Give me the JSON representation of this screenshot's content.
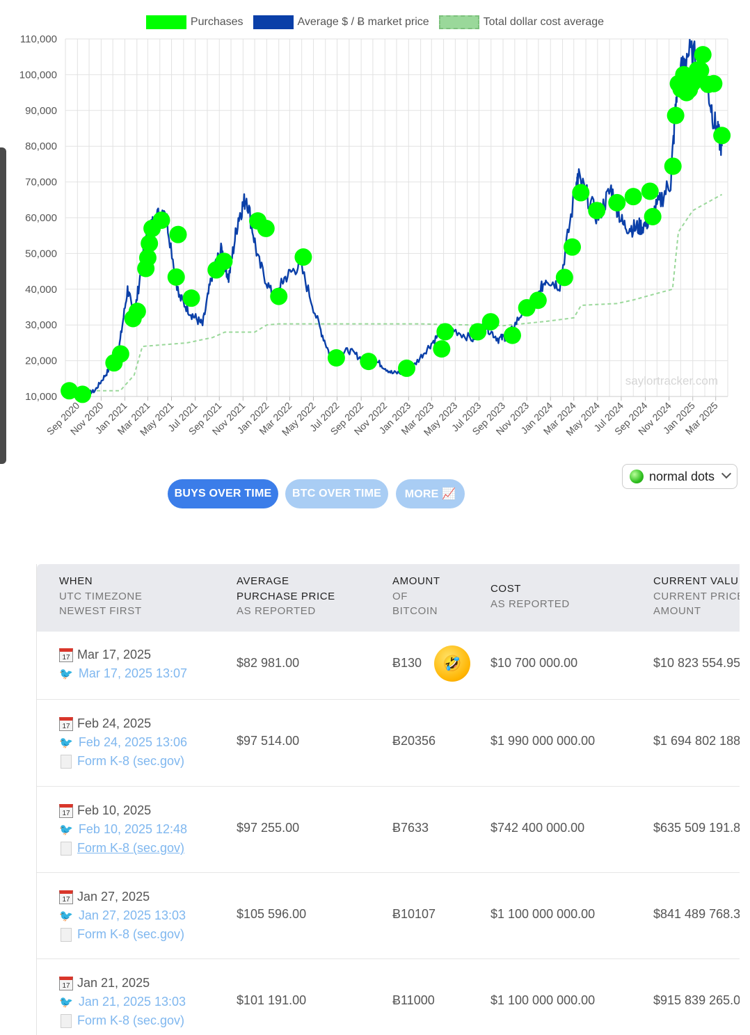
{
  "legend": {
    "purchases": "Purchases",
    "avg_price": "Average $ / Ƀ market price",
    "dca": "Total dollar cost average"
  },
  "watermark": "saylortracker.com",
  "colors": {
    "purchases": "#00ff00",
    "price": "#0a3fa8",
    "dca": "#9ad89a",
    "button_active": "#3b7de9",
    "button_inactive": "#a9cdf4"
  },
  "chart_data": {
    "type": "line",
    "ylim": [
      10000,
      110000
    ],
    "y_ticks": [
      "10,000",
      "20,000",
      "30,000",
      "40,000",
      "50,000",
      "60,000",
      "70,000",
      "80,000",
      "90,000",
      "100,000",
      "110,000"
    ],
    "x_ticks": [
      "Sep 2020",
      "Nov 2020",
      "Jan 2021",
      "Mar 2021",
      "May 2021",
      "Jul 2021",
      "Sep 2021",
      "Nov 2021",
      "Jan 2022",
      "Mar 2022",
      "May 2022",
      "Jul 2022",
      "Sep 2022",
      "Nov 2022",
      "Jan 2023",
      "Mar 2023",
      "May 2023",
      "Jul 2023",
      "Sep 2023",
      "Nov 2023",
      "Jan 2024",
      "Mar 2024",
      "May 2024",
      "Jul 2024",
      "Sep 2024",
      "Nov 2024",
      "Jan 2025",
      "Mar 2025"
    ],
    "series": [
      {
        "name": "Average $ / Ƀ market price",
        "x": [
          "2020-08-01",
          "2020-09-15",
          "2020-10-15",
          "2020-11-15",
          "2020-12-15",
          "2021-01-08",
          "2021-01-25",
          "2021-02-20",
          "2021-03-15",
          "2021-04-14",
          "2021-05-20",
          "2021-06-22",
          "2021-07-20",
          "2021-08-15",
          "2021-09-07",
          "2021-09-25",
          "2021-10-20",
          "2021-11-10",
          "2021-12-10",
          "2022-01-20",
          "2022-02-15",
          "2022-03-28",
          "2022-05-15",
          "2022-06-18",
          "2022-07-30",
          "2022-09-10",
          "2022-10-15",
          "2022-11-20",
          "2023-01-01",
          "2023-02-15",
          "2023-03-25",
          "2023-04-20",
          "2023-06-15",
          "2023-07-15",
          "2023-08-20",
          "2023-09-15",
          "2023-10-25",
          "2023-11-25",
          "2023-12-20",
          "2024-01-25",
          "2024-03-05",
          "2024-03-14",
          "2024-05-01",
          "2024-06-05",
          "2024-07-05",
          "2024-08-05",
          "2024-09-01",
          "2024-10-01",
          "2024-11-05",
          "2024-11-22",
          "2024-12-17",
          "2025-01-20",
          "2025-02-05",
          "2025-03-01",
          "2025-03-17"
        ],
        "values": [
          11600,
          10700,
          11500,
          16500,
          22000,
          40000,
          32000,
          52000,
          59000,
          63000,
          38000,
          33000,
          30000,
          45000,
          51000,
          43000,
          60000,
          66000,
          48000,
          37000,
          43000,
          47000,
          30000,
          20000,
          23000,
          20000,
          19500,
          16500,
          16800,
          23000,
          28000,
          29000,
          26000,
          30000,
          26000,
          27000,
          34500,
          37000,
          43000,
          41000,
          68000,
          71000,
          60000,
          68000,
          58000,
          57000,
          58000,
          63000,
          70000,
          97000,
          106000,
          104000,
          98000,
          85000,
          80000
        ]
      },
      {
        "name": "Total dollar cost average",
        "x": [
          "2020-08-01",
          "2020-11-20",
          "2020-12-20",
          "2021-01-25",
          "2021-02-15",
          "2021-06-10",
          "2021-08-15",
          "2021-09-15",
          "2021-12-01",
          "2022-01-01",
          "2022-02-01",
          "2023-02-01",
          "2023-09-01",
          "2023-12-20",
          "2024-03-01",
          "2024-03-20",
          "2024-06-20",
          "2024-08-01",
          "2024-09-20",
          "2024-11-10",
          "2024-11-25",
          "2025-01-01",
          "2025-03-17"
        ],
        "values": [
          11600,
          11600,
          11600,
          16000,
          24000,
          25000,
          26500,
          28000,
          28000,
          30000,
          30300,
          30300,
          29800,
          31000,
          32000,
          35500,
          36000,
          37000,
          38500,
          40000,
          56000,
          62000,
          66500
        ]
      }
    ],
    "purchase_markers": {
      "name": "Purchases",
      "x": [
        "2020-08-11",
        "2020-09-14",
        "2020-12-04",
        "2020-12-21",
        "2021-01-22",
        "2021-02-02",
        "2021-02-24",
        "2021-03-01",
        "2021-03-05",
        "2021-03-12",
        "2021-04-05",
        "2021-05-13",
        "2021-05-18",
        "2021-06-21",
        "2021-08-24",
        "2021-09-13",
        "2021-12-09",
        "2021-12-30",
        "2022-02-01",
        "2022-04-05",
        "2022-06-29",
        "2022-09-20",
        "2022-12-27",
        "2023-03-27",
        "2023-04-05",
        "2023-06-28",
        "2023-07-31",
        "2023-09-25",
        "2023-11-01",
        "2023-11-30",
        "2024-02-06",
        "2024-02-26",
        "2024-03-19",
        "2024-04-29",
        "2024-06-20",
        "2024-08-01",
        "2024-09-13",
        "2024-09-20",
        "2024-11-11",
        "2024-11-18",
        "2024-11-25",
        "2024-12-02",
        "2024-12-09",
        "2024-12-16",
        "2024-12-23",
        "2024-12-30",
        "2025-01-06",
        "2025-01-13",
        "2025-01-21",
        "2025-01-27",
        "2025-02-10",
        "2025-02-24",
        "2025-03-17"
      ],
      "values": [
        11600,
        10600,
        19400,
        21900,
        31800,
        33800,
        45800,
        48800,
        52800,
        57000,
        59300,
        43400,
        55300,
        37500,
        45400,
        47800,
        59100,
        57000,
        38000,
        49000,
        20800,
        19800,
        17900,
        23300,
        28100,
        28100,
        30900,
        27100,
        34800,
        36900,
        43300,
        51800,
        67000,
        62000,
        64200,
        65900,
        67400,
        60300,
        74400,
        88600,
        97500,
        96000,
        100000,
        95000,
        95800,
        97500,
        98300,
        101300,
        101200,
        105600,
        97300,
        97500,
        83000
      ]
    }
  },
  "dots_select": {
    "value": "normal dots"
  },
  "buttons": {
    "buys": "BUYS OVER TIME",
    "btc": "BTC OVER TIME",
    "more": "MORE 📈"
  },
  "table": {
    "headers": {
      "when": [
        "WHEN",
        "UTC TIMEZONE",
        "NEWEST FIRST"
      ],
      "avg": [
        "AVERAGE",
        "PURCHASE PRICE",
        "AS REPORTED"
      ],
      "amount": [
        "AMOUNT",
        "OF",
        "BITCOIN"
      ],
      "cost": [
        "COST",
        "AS REPORTED"
      ],
      "value": [
        "CURRENT VALU",
        "CURRENT PRICE",
        "AMOUNT"
      ]
    },
    "rows": [
      {
        "date": "Mar 17, 2025",
        "tweet": "Mar 17, 2025 13:07",
        "form": "",
        "avg": "$82 981.00",
        "amount": "Ƀ130",
        "cost": "$10 700 000.00",
        "value": "$10 823 554.95"
      },
      {
        "date": "Feb 24, 2025",
        "tweet": "Feb 24, 2025 13:06",
        "form": "Form K-8 (sec.gov)",
        "avg": "$97 514.00",
        "amount": "Ƀ20356",
        "cost": "$1 990 000 000.00",
        "value": "$1 694 802 188"
      },
      {
        "date": "Feb 10, 2025",
        "tweet": "Feb 10, 2025 12:48",
        "form": "Form K-8 (sec.gov)",
        "avg": "$97 255.00",
        "amount": "Ƀ7633",
        "cost": "$742 400 000.00",
        "value": "$635 509 191.8"
      },
      {
        "date": "Jan 27, 2025",
        "tweet": "Jan 27, 2025 13:03",
        "form": "Form K-8 (sec.gov)",
        "avg": "$105 596.00",
        "amount": "Ƀ10107",
        "cost": "$1 100 000 000.00",
        "value": "$841 489 768.3"
      },
      {
        "date": "Jan 21, 2025",
        "tweet": "Jan 21, 2025 13:03",
        "form": "Form K-8 (sec.gov)",
        "avg": "$101 191.00",
        "amount": "Ƀ11000",
        "cost": "$1 100 000 000.00",
        "value": "$915 839 265.0"
      }
    ]
  }
}
